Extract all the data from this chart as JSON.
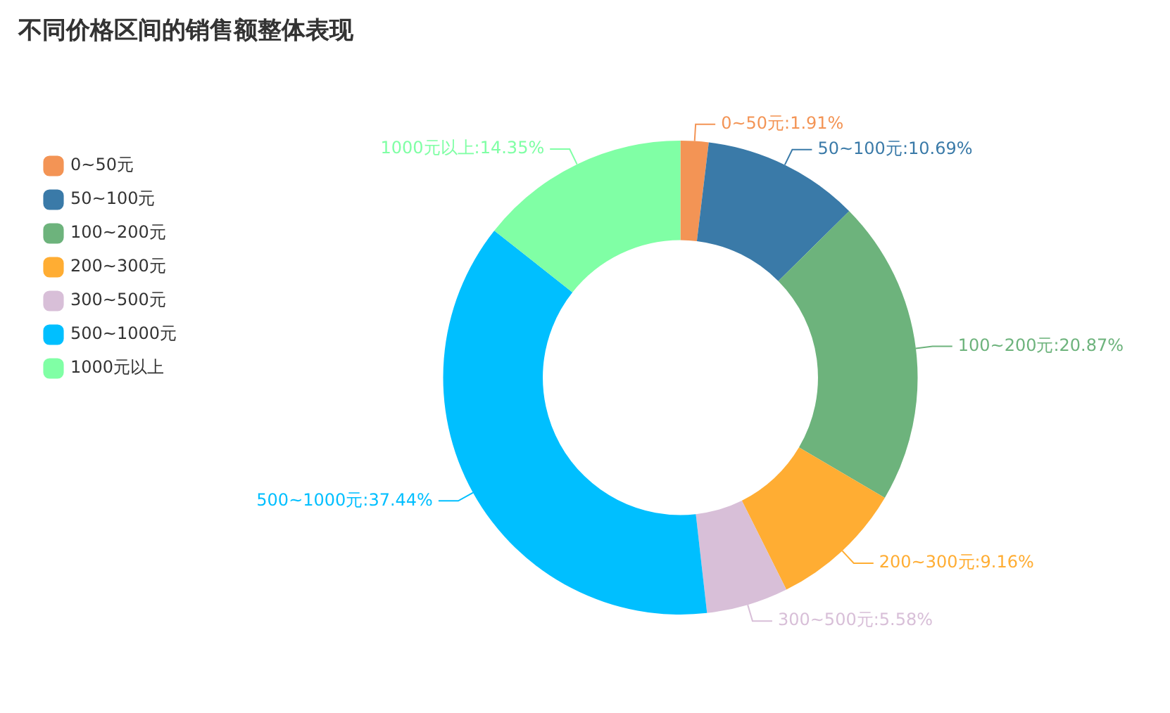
{
  "chart_data": {
    "type": "donut",
    "title": "不同价格区间的销售额整体表现",
    "categories": [
      "0~50元",
      "50~100元",
      "100~200元",
      "200~300元",
      "300~500元",
      "500~1000元",
      "1000元以上"
    ],
    "values": [
      1.91,
      10.69,
      20.87,
      9.16,
      5.58,
      37.44,
      14.35
    ],
    "value_labels": [
      ":1.91%",
      ":10.69%",
      ":20.87%",
      ":9.16%",
      ":5.58%",
      ":37.44%",
      ":14.35%"
    ],
    "colors": [
      "#f39455",
      "#3a7aa8",
      "#6db37c",
      "#ffad33",
      "#d8bfd8",
      "#00bfff",
      "#80ffa5"
    ],
    "legend": "top left"
  }
}
